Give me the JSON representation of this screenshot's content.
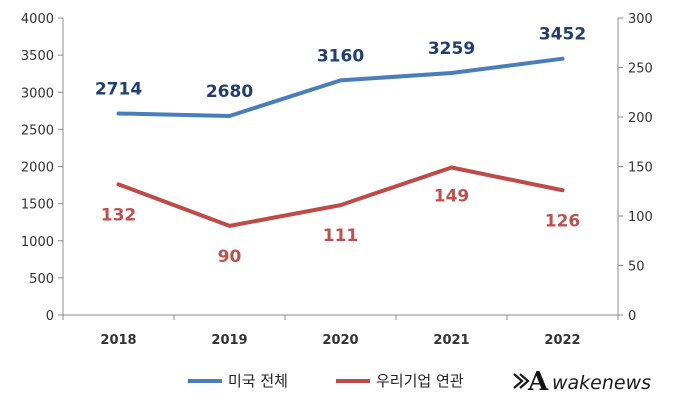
{
  "chart_data": {
    "type": "line",
    "categories": [
      "2018",
      "2019",
      "2020",
      "2021",
      "2022"
    ],
    "series": [
      {
        "name": "미국 전체",
        "axis": "left",
        "color": "#4a7ebb",
        "label_color": "#1f3f73",
        "values": [
          2714,
          2680,
          3160,
          3259,
          3452
        ],
        "labels": [
          "2714",
          "2680",
          "3160",
          "3259",
          "3452"
        ]
      },
      {
        "name": "우리기업 연관",
        "axis": "right",
        "color": "#be4b48",
        "label_color": "#c0504d",
        "values": [
          132,
          90,
          111,
          149,
          126
        ],
        "labels": [
          "132",
          "90",
          "111",
          "149",
          "126"
        ]
      }
    ],
    "left_axis": {
      "ylim": [
        0,
        4000
      ],
      "ticks": [
        "0",
        "500",
        "1000",
        "1500",
        "2000",
        "2500",
        "3000",
        "3500",
        "4000"
      ]
    },
    "right_axis": {
      "ylim": [
        0,
        300
      ],
      "ticks": [
        "0",
        "50",
        "100",
        "150",
        "200",
        "250",
        "300"
      ]
    },
    "grid": false,
    "legend": "bottom-center"
  },
  "watermark": {
    "logo_letter": "A",
    "text": "wakenews"
  }
}
